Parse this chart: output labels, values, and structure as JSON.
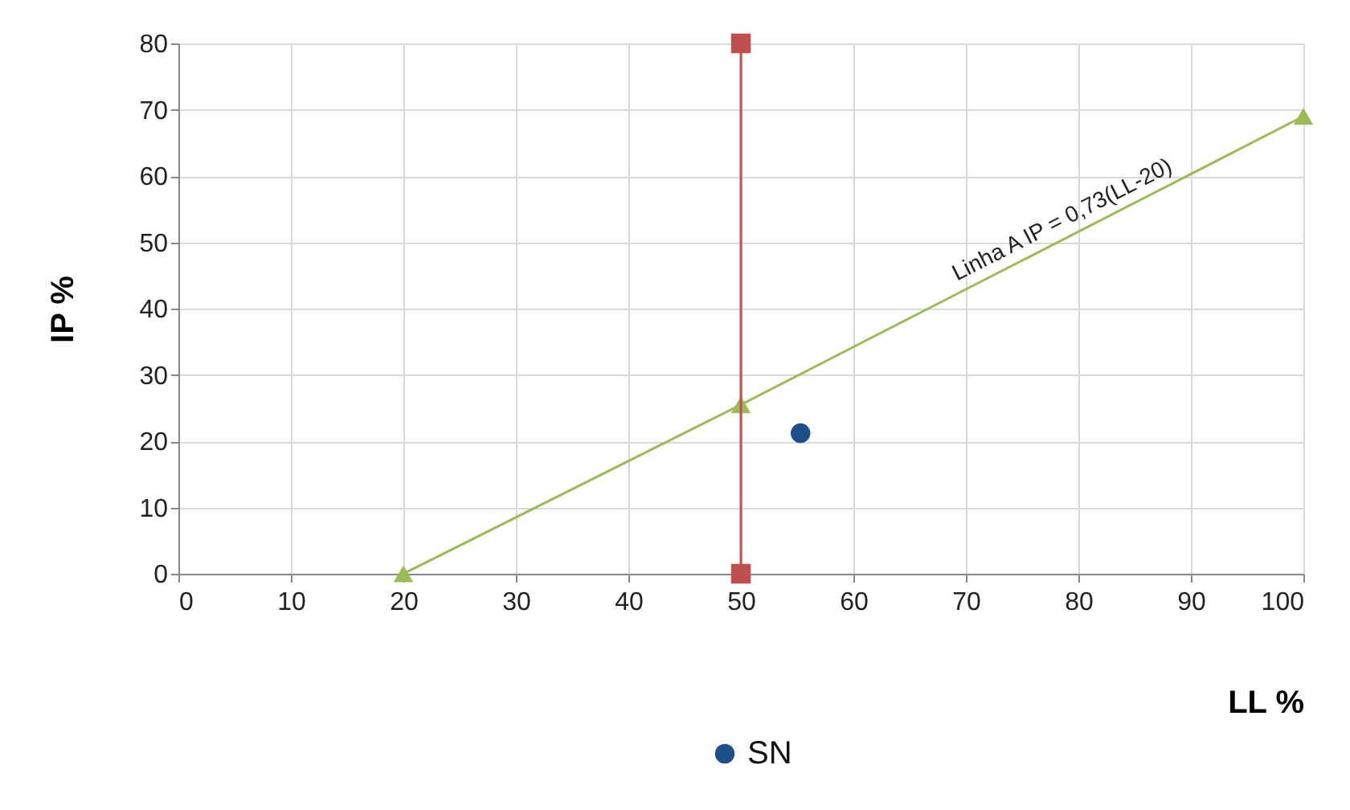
{
  "chart_data": {
    "type": "scatter",
    "xlabel": "LL %",
    "ylabel": "IP %",
    "xlim": [
      0,
      100
    ],
    "ylim": [
      0,
      80
    ],
    "xticks": [
      0,
      10,
      20,
      30,
      40,
      50,
      60,
      70,
      80,
      90,
      100
    ],
    "yticks": [
      0,
      10,
      20,
      30,
      40,
      50,
      60,
      70,
      80
    ],
    "grid": true,
    "legend": "bottom",
    "line_style": "solid",
    "series": [
      {
        "type": "line",
        "color": "#9bbb59",
        "marker": "triangle",
        "x": [
          20,
          50,
          100
        ],
        "values": [
          0,
          25.5,
          69
        ]
      },
      {
        "type": "line",
        "color": "#c0504d",
        "marker": "square",
        "x": [
          50,
          50
        ],
        "values": [
          0,
          80
        ]
      },
      {
        "name": "SN",
        "color": "#1f4e8c",
        "marker": "circle",
        "x": [
          55.3
        ],
        "values": [
          21.2
        ]
      }
    ],
    "annotations": [
      "Linha A IP = 0,73(LL-20)"
    ]
  }
}
